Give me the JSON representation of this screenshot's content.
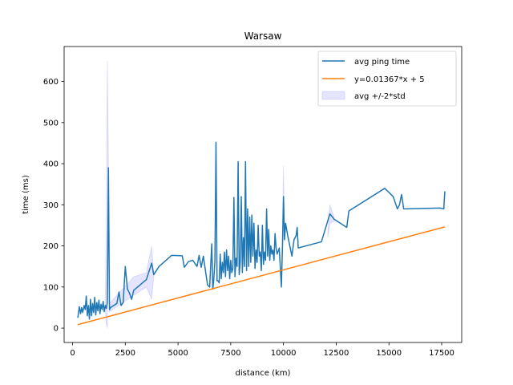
{
  "chart_data": {
    "type": "line",
    "title": "Warsaw",
    "xlabel": "distance (km)",
    "ylabel": "time (ms)",
    "xlim": [
      -400,
      18450
    ],
    "ylim": [
      -35,
      685
    ],
    "xticks": [
      0,
      2500,
      5000,
      7500,
      10000,
      12500,
      15000,
      17500
    ],
    "yticks": [
      0,
      100,
      200,
      300,
      400,
      500,
      600
    ],
    "legend_position": "top-right",
    "legend": [
      "avg ping time",
      "y=0.01367*x + 5",
      "avg +/-2*std"
    ],
    "colors": {
      "avg": "#1f77b4",
      "fit": "#ff7f0e",
      "band_fill": "#0000ff",
      "band_edge": "#0000ff"
    },
    "series": [
      {
        "name": "avg ping time",
        "points": [
          [
            250,
            25
          ],
          [
            320,
            52
          ],
          [
            380,
            35
          ],
          [
            430,
            50
          ],
          [
            480,
            38
          ],
          [
            550,
            55
          ],
          [
            600,
            45
          ],
          [
            650,
            78
          ],
          [
            700,
            30
          ],
          [
            750,
            55
          ],
          [
            800,
            22
          ],
          [
            850,
            70
          ],
          [
            900,
            30
          ],
          [
            950,
            60
          ],
          [
            1000,
            38
          ],
          [
            1050,
            75
          ],
          [
            1100,
            32
          ],
          [
            1150,
            62
          ],
          [
            1200,
            42
          ],
          [
            1250,
            68
          ],
          [
            1300,
            35
          ],
          [
            1350,
            58
          ],
          [
            1400,
            45
          ],
          [
            1450,
            65
          ],
          [
            1500,
            40
          ],
          [
            1550,
            55
          ],
          [
            1600,
            48
          ],
          [
            1650,
            62
          ],
          [
            1700,
            390
          ],
          [
            1750,
            45
          ],
          [
            1800,
            50
          ],
          [
            2100,
            60
          ],
          [
            2200,
            88
          ],
          [
            2300,
            55
          ],
          [
            2400,
            62
          ],
          [
            2500,
            150
          ],
          [
            2600,
            95
          ],
          [
            2700,
            85
          ],
          [
            2800,
            70
          ],
          [
            2900,
            92
          ],
          [
            3500,
            118
          ],
          [
            3750,
            158
          ],
          [
            3850,
            130
          ],
          [
            4100,
            150
          ],
          [
            4700,
            177
          ],
          [
            5200,
            176
          ],
          [
            5300,
            148
          ],
          [
            5500,
            162
          ],
          [
            5700,
            165
          ],
          [
            5900,
            150
          ],
          [
            6000,
            177
          ],
          [
            6100,
            148
          ],
          [
            6200,
            175
          ],
          [
            6300,
            140
          ],
          [
            6400,
            105
          ],
          [
            6500,
            100
          ],
          [
            6600,
            205
          ],
          [
            6650,
            95
          ],
          [
            6700,
            120
          ],
          [
            6750,
            165
          ],
          [
            6800,
            452
          ],
          [
            6850,
            115
          ],
          [
            6900,
            115
          ],
          [
            6950,
            110
          ],
          [
            7000,
            180
          ],
          [
            7050,
            120
          ],
          [
            7100,
            160
          ],
          [
            7150,
            135
          ],
          [
            7200,
            185
          ],
          [
            7250,
            125
          ],
          [
            7300,
            190
          ],
          [
            7350,
            140
          ],
          [
            7400,
            175
          ],
          [
            7450,
            120
          ],
          [
            7500,
            165
          ],
          [
            7550,
            135
          ],
          [
            7600,
            145
          ],
          [
            7650,
            318
          ],
          [
            7700,
            125
          ],
          [
            7750,
            170
          ],
          [
            7800,
            150
          ],
          [
            7850,
            405
          ],
          [
            7900,
            130
          ],
          [
            7950,
            160
          ],
          [
            8000,
            320
          ],
          [
            8050,
            135
          ],
          [
            8100,
            220
          ],
          [
            8150,
            150
          ],
          [
            8200,
            405
          ],
          [
            8250,
            140
          ],
          [
            8300,
            290
          ],
          [
            8350,
            150
          ],
          [
            8400,
            270
          ],
          [
            8450,
            160
          ],
          [
            8500,
            275
          ],
          [
            8550,
            175
          ],
          [
            8600,
            255
          ],
          [
            8650,
            145
          ],
          [
            8700,
            190
          ],
          [
            8750,
            160
          ],
          [
            8800,
            250
          ],
          [
            8850,
            175
          ],
          [
            8900,
            185
          ],
          [
            8950,
            140
          ],
          [
            9000,
            250
          ],
          [
            9050,
            155
          ],
          [
            9100,
            185
          ],
          [
            9150,
            165
          ],
          [
            9200,
            290
          ],
          [
            9250,
            175
          ],
          [
            9300,
            240
          ],
          [
            9350,
            165
          ],
          [
            9400,
            200
          ],
          [
            9450,
            180
          ],
          [
            9500,
            190
          ],
          [
            9550,
            165
          ],
          [
            9600,
            230
          ],
          [
            9650,
            195
          ],
          [
            9700,
            180
          ],
          [
            9800,
            195
          ],
          [
            9900,
            100
          ],
          [
            9950,
            195
          ],
          [
            10000,
            320
          ],
          [
            10050,
            215
          ],
          [
            10100,
            255
          ],
          [
            10200,
            225
          ],
          [
            10300,
            200
          ],
          [
            10400,
            175
          ],
          [
            10500,
            215
          ],
          [
            10600,
            225
          ],
          [
            10650,
            245
          ],
          [
            10700,
            195
          ],
          [
            11800,
            210
          ],
          [
            12200,
            278
          ],
          [
            12400,
            265
          ],
          [
            13000,
            245
          ],
          [
            13100,
            285
          ],
          [
            14800,
            340
          ],
          [
            15200,
            320
          ],
          [
            15400,
            290
          ],
          [
            15500,
            300
          ],
          [
            15600,
            325
          ],
          [
            15700,
            290
          ],
          [
            17400,
            292
          ],
          [
            17600,
            290
          ],
          [
            17650,
            333
          ]
        ]
      },
      {
        "name": "y=0.01367*x + 5",
        "points": [
          [
            250,
            8.42
          ],
          [
            17650,
            246.28
          ]
        ]
      },
      {
        "name": "avg +/-2*std",
        "upper": [
          [
            1550,
            60
          ],
          [
            1600,
            250
          ],
          [
            1650,
            650
          ],
          [
            1700,
            420
          ],
          [
            1750,
            60
          ],
          [
            2900,
            125
          ],
          [
            3500,
            135
          ],
          [
            3750,
            200
          ],
          [
            3850,
            130
          ],
          [
            9950,
            200
          ],
          [
            10000,
            395
          ],
          [
            10050,
            220
          ],
          [
            12100,
            230
          ],
          [
            12200,
            300
          ],
          [
            12400,
            270
          ]
        ],
        "lower": [
          [
            1550,
            50
          ],
          [
            1600,
            10
          ],
          [
            1650,
            0
          ],
          [
            1700,
            360
          ],
          [
            1750,
            40
          ],
          [
            2900,
            80
          ],
          [
            3500,
            100
          ],
          [
            3750,
            70
          ],
          [
            3850,
            125
          ],
          [
            9950,
            190
          ],
          [
            10000,
            240
          ],
          [
            10050,
            210
          ],
          [
            12100,
            220
          ],
          [
            12200,
            255
          ],
          [
            12400,
            260
          ]
        ]
      }
    ]
  }
}
